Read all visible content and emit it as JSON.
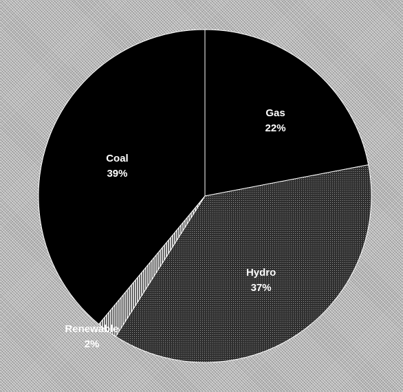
{
  "chart_data": {
    "type": "pie",
    "title": "",
    "start_angle_deg": 0,
    "direction": "clockwise",
    "slices": [
      {
        "label": "Gas",
        "value": 22,
        "value_label": "22%",
        "color": "#000000",
        "pattern": "solid"
      },
      {
        "label": "Hydro",
        "value": 37,
        "value_label": "37%",
        "color": "#3a3a3a",
        "pattern": "dotted"
      },
      {
        "label": "Renewable",
        "value": 2,
        "value_label": "2%",
        "color": "#9a9a9a",
        "pattern": "hatched"
      },
      {
        "label": "Coal",
        "value": 39,
        "value_label": "39%",
        "color": "#000000",
        "pattern": "solid"
      }
    ]
  }
}
